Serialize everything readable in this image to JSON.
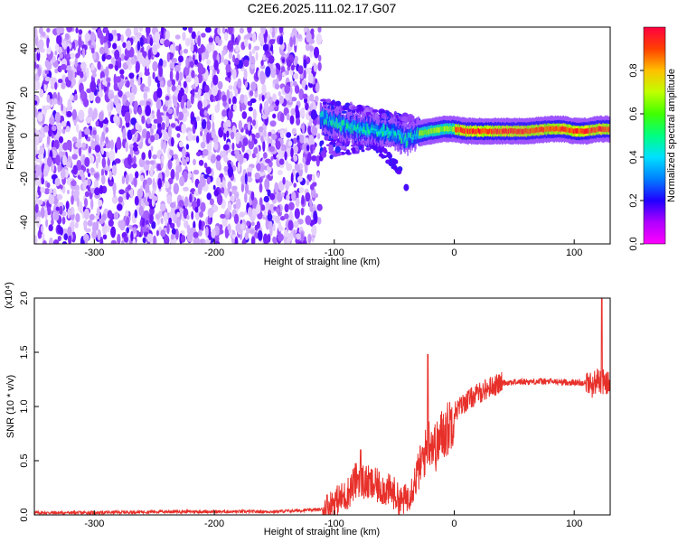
{
  "chart_data": [
    {
      "type": "heatmap",
      "title": "C2E6.2025.111.02.17.G07",
      "xlabel": "Height of straight line (km)",
      "ylabel": "Frequency (Hz)",
      "xlim": [
        -350,
        130
      ],
      "ylim": [
        -50,
        50
      ],
      "xticks": [
        "-300",
        "-200",
        "-100",
        "0",
        "100"
      ],
      "yticks": [
        "40",
        "20",
        "0",
        "-20",
        "-40"
      ],
      "colorbar": {
        "label": "Normalized spectral amplitude",
        "range": [
          0,
          1
        ],
        "ticks": [
          "0.0",
          "0.2",
          "0.4",
          "0.6",
          "0.8"
        ],
        "colormap": [
          "#ffffff",
          "#d8b8ff",
          "#6a00ff",
          "#0000ff",
          "#00c8ff",
          "#00ff60",
          "#80ff00",
          "#ffff00",
          "#ff8000",
          "#ff0000",
          "#ff0040"
        ]
      },
      "regions": [
        {
          "name": "noise",
          "x": [
            -350,
            -112
          ],
          "freq": [
            -50,
            50
          ],
          "amplitude": [
            0.0,
            0.25
          ]
        },
        {
          "name": "transition",
          "x": [
            -112,
            -30
          ],
          "freq": [
            -25,
            15
          ],
          "amplitude": [
            0.15,
            0.5
          ]
        },
        {
          "name": "signal",
          "x": [
            -30,
            130
          ],
          "freq": [
            0,
            5
          ],
          "amplitude": [
            0.6,
            1.0
          ]
        }
      ],
      "signal_track": {
        "x": [
          -110,
          -100,
          -90,
          -80,
          -70,
          -60,
          -50,
          -45,
          -40,
          -35,
          -30,
          -20,
          -10,
          0,
          10,
          20,
          40,
          60,
          80,
          90,
          100,
          110,
          120,
          130
        ],
        "freq": [
          8,
          6,
          4,
          3,
          3,
          2,
          1,
          -1,
          -2,
          0,
          1,
          2,
          3,
          3,
          2,
          2,
          2,
          2,
          3,
          3,
          2,
          2,
          3,
          3
        ]
      },
      "outliers": [
        {
          "x": -40,
          "freq": -24
        }
      ]
    },
    {
      "type": "line",
      "xlabel": "Height of straight line (km)",
      "ylabel": "SNR (10 * v/v)",
      "y_multiplier": "(x10⁴)",
      "xlim": [
        -350,
        130
      ],
      "ylim": [
        0,
        2.0
      ],
      "xticks": [
        "-300",
        "-200",
        "-100",
        "0",
        "100"
      ],
      "yticks": [
        "0.0",
        "0.5",
        "1.0",
        "1.5",
        "2.0"
      ],
      "color": "#e8302a",
      "series": [
        {
          "x": [
            -350,
            -300,
            -250,
            -200,
            -150,
            -110,
            -100,
            -90,
            -80,
            -75,
            -70,
            -60,
            -50,
            -45,
            -40,
            -35,
            -30,
            -25,
            -20,
            -15,
            -10,
            -5,
            0,
            10,
            20,
            30,
            40,
            60,
            80,
            100,
            110,
            115,
            120,
            125,
            130
          ],
          "values": [
            0.02,
            0.02,
            0.03,
            0.03,
            0.03,
            0.05,
            0.12,
            0.18,
            0.35,
            0.3,
            0.28,
            0.25,
            0.2,
            0.12,
            0.15,
            0.25,
            0.4,
            0.55,
            0.7,
            0.62,
            0.75,
            0.8,
            0.95,
            1.05,
            1.12,
            1.18,
            1.22,
            1.23,
            1.23,
            1.22,
            1.22,
            1.2,
            1.25,
            1.22,
            1.2
          ]
        }
      ],
      "spikes": [
        {
          "x": -78,
          "value": 0.6
        },
        {
          "x": -22,
          "value": 1.48
        },
        {
          "x": 123,
          "value": 2.0
        }
      ]
    }
  ]
}
